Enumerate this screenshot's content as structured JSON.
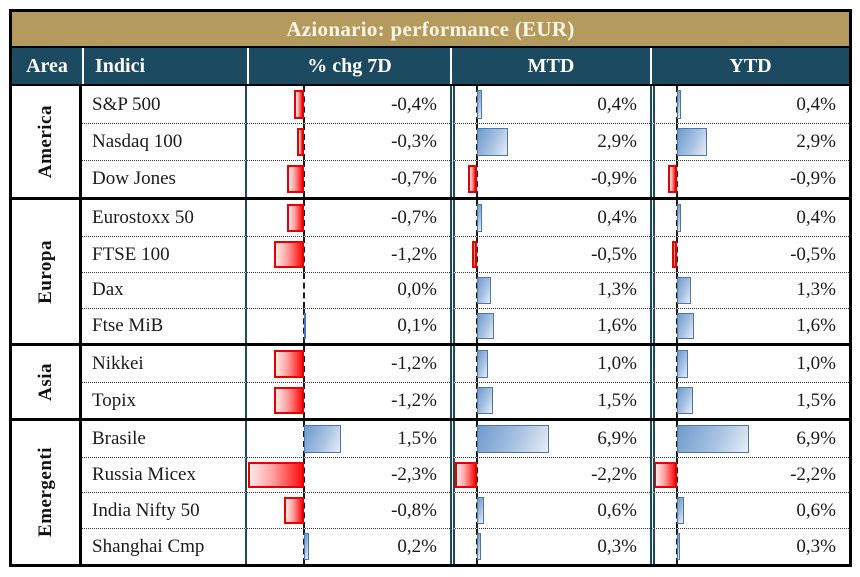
{
  "title": "Azionario: performance (EUR)",
  "header": {
    "area": "Area",
    "index": "Indici",
    "chg7d": "% chg 7D",
    "mtd": "MTD",
    "ytd": "YTD"
  },
  "colors": {
    "title_band": "#b49a5d",
    "header_band": "#1c4a60",
    "positive_bar": "#95b3d7",
    "positive_bar_border": "#4a76ad",
    "negative_bar": "#ff0000",
    "negative_bar_border": "#e80000",
    "column_line": "#1c4a60",
    "border": "#000000"
  },
  "groups": [
    {
      "area": "America",
      "rows": [
        {
          "index": "S&P 500",
          "chg7d": {
            "v": -0.4,
            "label": "-0,4%"
          },
          "mtd": {
            "v": 0.4,
            "label": "0,4%"
          },
          "ytd": {
            "v": 0.4,
            "label": "0,4%"
          }
        },
        {
          "index": "Nasdaq 100",
          "chg7d": {
            "v": -0.3,
            "label": "-0,3%"
          },
          "mtd": {
            "v": 2.9,
            "label": "2,9%"
          },
          "ytd": {
            "v": 2.9,
            "label": "2,9%"
          }
        },
        {
          "index": "Dow Jones",
          "chg7d": {
            "v": -0.7,
            "label": "-0,7%"
          },
          "mtd": {
            "v": -0.9,
            "label": "-0,9%"
          },
          "ytd": {
            "v": -0.9,
            "label": "-0,9%"
          }
        }
      ]
    },
    {
      "area": "Europa",
      "rows": [
        {
          "index": "Eurostoxx 50",
          "chg7d": {
            "v": -0.7,
            "label": "-0,7%"
          },
          "mtd": {
            "v": 0.4,
            "label": "0,4%"
          },
          "ytd": {
            "v": 0.4,
            "label": "0,4%"
          }
        },
        {
          "index": "FTSE 100",
          "chg7d": {
            "v": -1.2,
            "label": "-1,2%"
          },
          "mtd": {
            "v": -0.5,
            "label": "-0,5%"
          },
          "ytd": {
            "v": -0.5,
            "label": "-0,5%"
          }
        },
        {
          "index": "Dax",
          "chg7d": {
            "v": 0.0,
            "label": "0,0%"
          },
          "mtd": {
            "v": 1.3,
            "label": "1,3%"
          },
          "ytd": {
            "v": 1.3,
            "label": "1,3%"
          }
        },
        {
          "index": "Ftse MiB",
          "chg7d": {
            "v": 0.1,
            "label": "0,1%"
          },
          "mtd": {
            "v": 1.6,
            "label": "1,6%"
          },
          "ytd": {
            "v": 1.6,
            "label": "1,6%"
          }
        }
      ]
    },
    {
      "area": "Asia",
      "rows": [
        {
          "index": "Nikkei",
          "chg7d": {
            "v": -1.2,
            "label": "-1,2%"
          },
          "mtd": {
            "v": 1.0,
            "label": "1,0%"
          },
          "ytd": {
            "v": 1.0,
            "label": "1,0%"
          }
        },
        {
          "index": "Topix",
          "chg7d": {
            "v": -1.2,
            "label": "-1,2%"
          },
          "mtd": {
            "v": 1.5,
            "label": "1,5%"
          },
          "ytd": {
            "v": 1.5,
            "label": "1,5%"
          }
        }
      ]
    },
    {
      "area": "Emergenti",
      "rows": [
        {
          "index": "Brasile",
          "chg7d": {
            "v": 1.5,
            "label": "1,5%"
          },
          "mtd": {
            "v": 6.9,
            "label": "6,9%"
          },
          "ytd": {
            "v": 6.9,
            "label": "6,9%"
          }
        },
        {
          "index": "Russia Micex",
          "chg7d": {
            "v": -2.3,
            "label": "-2,3%"
          },
          "mtd": {
            "v": -2.2,
            "label": "-2,2%"
          },
          "ytd": {
            "v": -2.2,
            "label": "-2,2%"
          }
        },
        {
          "index": "India Nifty 50",
          "chg7d": {
            "v": -0.8,
            "label": "-0,8%"
          },
          "mtd": {
            "v": 0.6,
            "label": "0,6%"
          },
          "ytd": {
            "v": 0.6,
            "label": "0,6%"
          }
        },
        {
          "index": "Shanghai Cmp",
          "chg7d": {
            "v": 0.2,
            "label": "0,2%"
          },
          "mtd": {
            "v": 0.3,
            "label": "0,3%"
          },
          "ytd": {
            "v": 0.3,
            "label": "0,3%"
          }
        }
      ]
    }
  ],
  "chart_data": {
    "type": "table",
    "title": "Azionario: performance (EUR)",
    "columns": [
      "Area",
      "Indici",
      "% chg 7D",
      "MTD",
      "YTD"
    ],
    "units": "percent",
    "decimal_separator": ",",
    "rows": [
      [
        "America",
        "S&P 500",
        -0.4,
        0.4,
        0.4
      ],
      [
        "America",
        "Nasdaq 100",
        -0.3,
        2.9,
        2.9
      ],
      [
        "America",
        "Dow Jones",
        -0.7,
        -0.9,
        -0.9
      ],
      [
        "Europa",
        "Eurostoxx 50",
        -0.7,
        0.4,
        0.4
      ],
      [
        "Europa",
        "FTSE 100",
        -1.2,
        -0.5,
        -0.5
      ],
      [
        "Europa",
        "Dax",
        0.0,
        1.3,
        1.3
      ],
      [
        "Europa",
        "Ftse MiB",
        0.1,
        1.6,
        1.6
      ],
      [
        "Asia",
        "Nikkei",
        -1.2,
        1.0,
        1.0
      ],
      [
        "Asia",
        "Topix",
        -1.2,
        1.5,
        1.5
      ],
      [
        "Emergenti",
        "Brasile",
        1.5,
        6.9,
        6.9
      ],
      [
        "Emergenti",
        "Russia Micex",
        -2.3,
        -2.2,
        -2.2
      ],
      [
        "Emergenti",
        "India Nifty 50",
        -0.8,
        0.6,
        0.6
      ],
      [
        "Emergenti",
        "Shanghai Cmp",
        0.2,
        0.3,
        0.3
      ]
    ],
    "bar_style": {
      "positive_color": "#95b3d7",
      "negative_color": "#ff0000",
      "zero_axis": "dashed black vertical line per column",
      "axis_hints": {
        "chg7d_zero_frac": 0.28,
        "mtd_ytd_zero_frac": 0.115
      }
    }
  }
}
